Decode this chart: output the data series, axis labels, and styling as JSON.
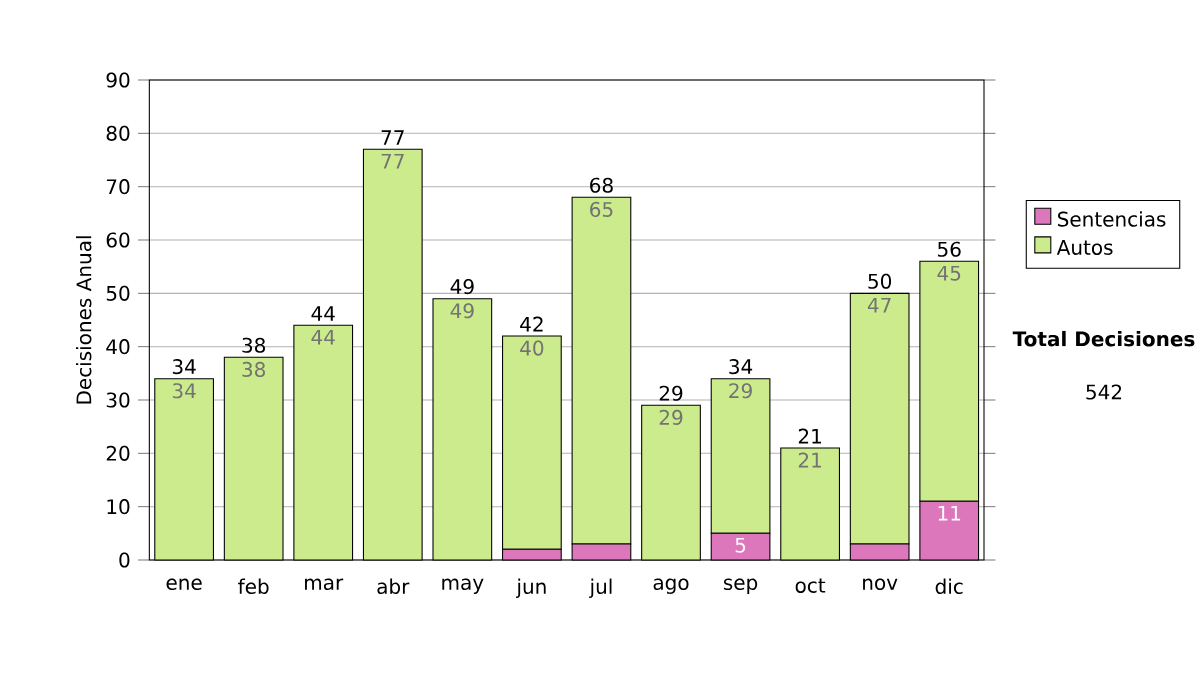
{
  "chart_data": {
    "type": "bar",
    "stacked": true,
    "ylabel": "Decisiones Anual",
    "categories": [
      "ene",
      "feb",
      "mar",
      "abr",
      "may",
      "jun",
      "jul",
      "ago",
      "sep",
      "oct",
      "nov",
      "dic"
    ],
    "series": [
      {
        "name": "Sentencias",
        "color": "#dd77bb",
        "values": [
          0,
          0,
          0,
          0,
          0,
          2,
          3,
          0,
          5,
          0,
          3,
          11
        ],
        "value_labels": [
          null,
          null,
          null,
          null,
          null,
          null,
          null,
          null,
          "5",
          null,
          null,
          "11"
        ]
      },
      {
        "name": "Autos",
        "color": "#cceb8c",
        "values": [
          34,
          38,
          44,
          77,
          49,
          40,
          65,
          29,
          29,
          21,
          47,
          45
        ],
        "value_labels": [
          "34",
          "38",
          "44",
          "77",
          "49",
          "40",
          "65",
          "29",
          "29",
          "21",
          "47",
          "45"
        ]
      }
    ],
    "totals": [
      "34",
      "38",
      "44",
      "77",
      "49",
      "42",
      "68",
      "29",
      "34",
      "21",
      "50",
      "56"
    ],
    "ylim": [
      0,
      90
    ],
    "yticks": [
      0,
      10,
      20,
      30,
      40,
      50,
      60,
      70,
      80,
      90
    ],
    "grid": "y",
    "legend": "right",
    "annotations": [
      "Total Decisiones",
      "542"
    ]
  }
}
